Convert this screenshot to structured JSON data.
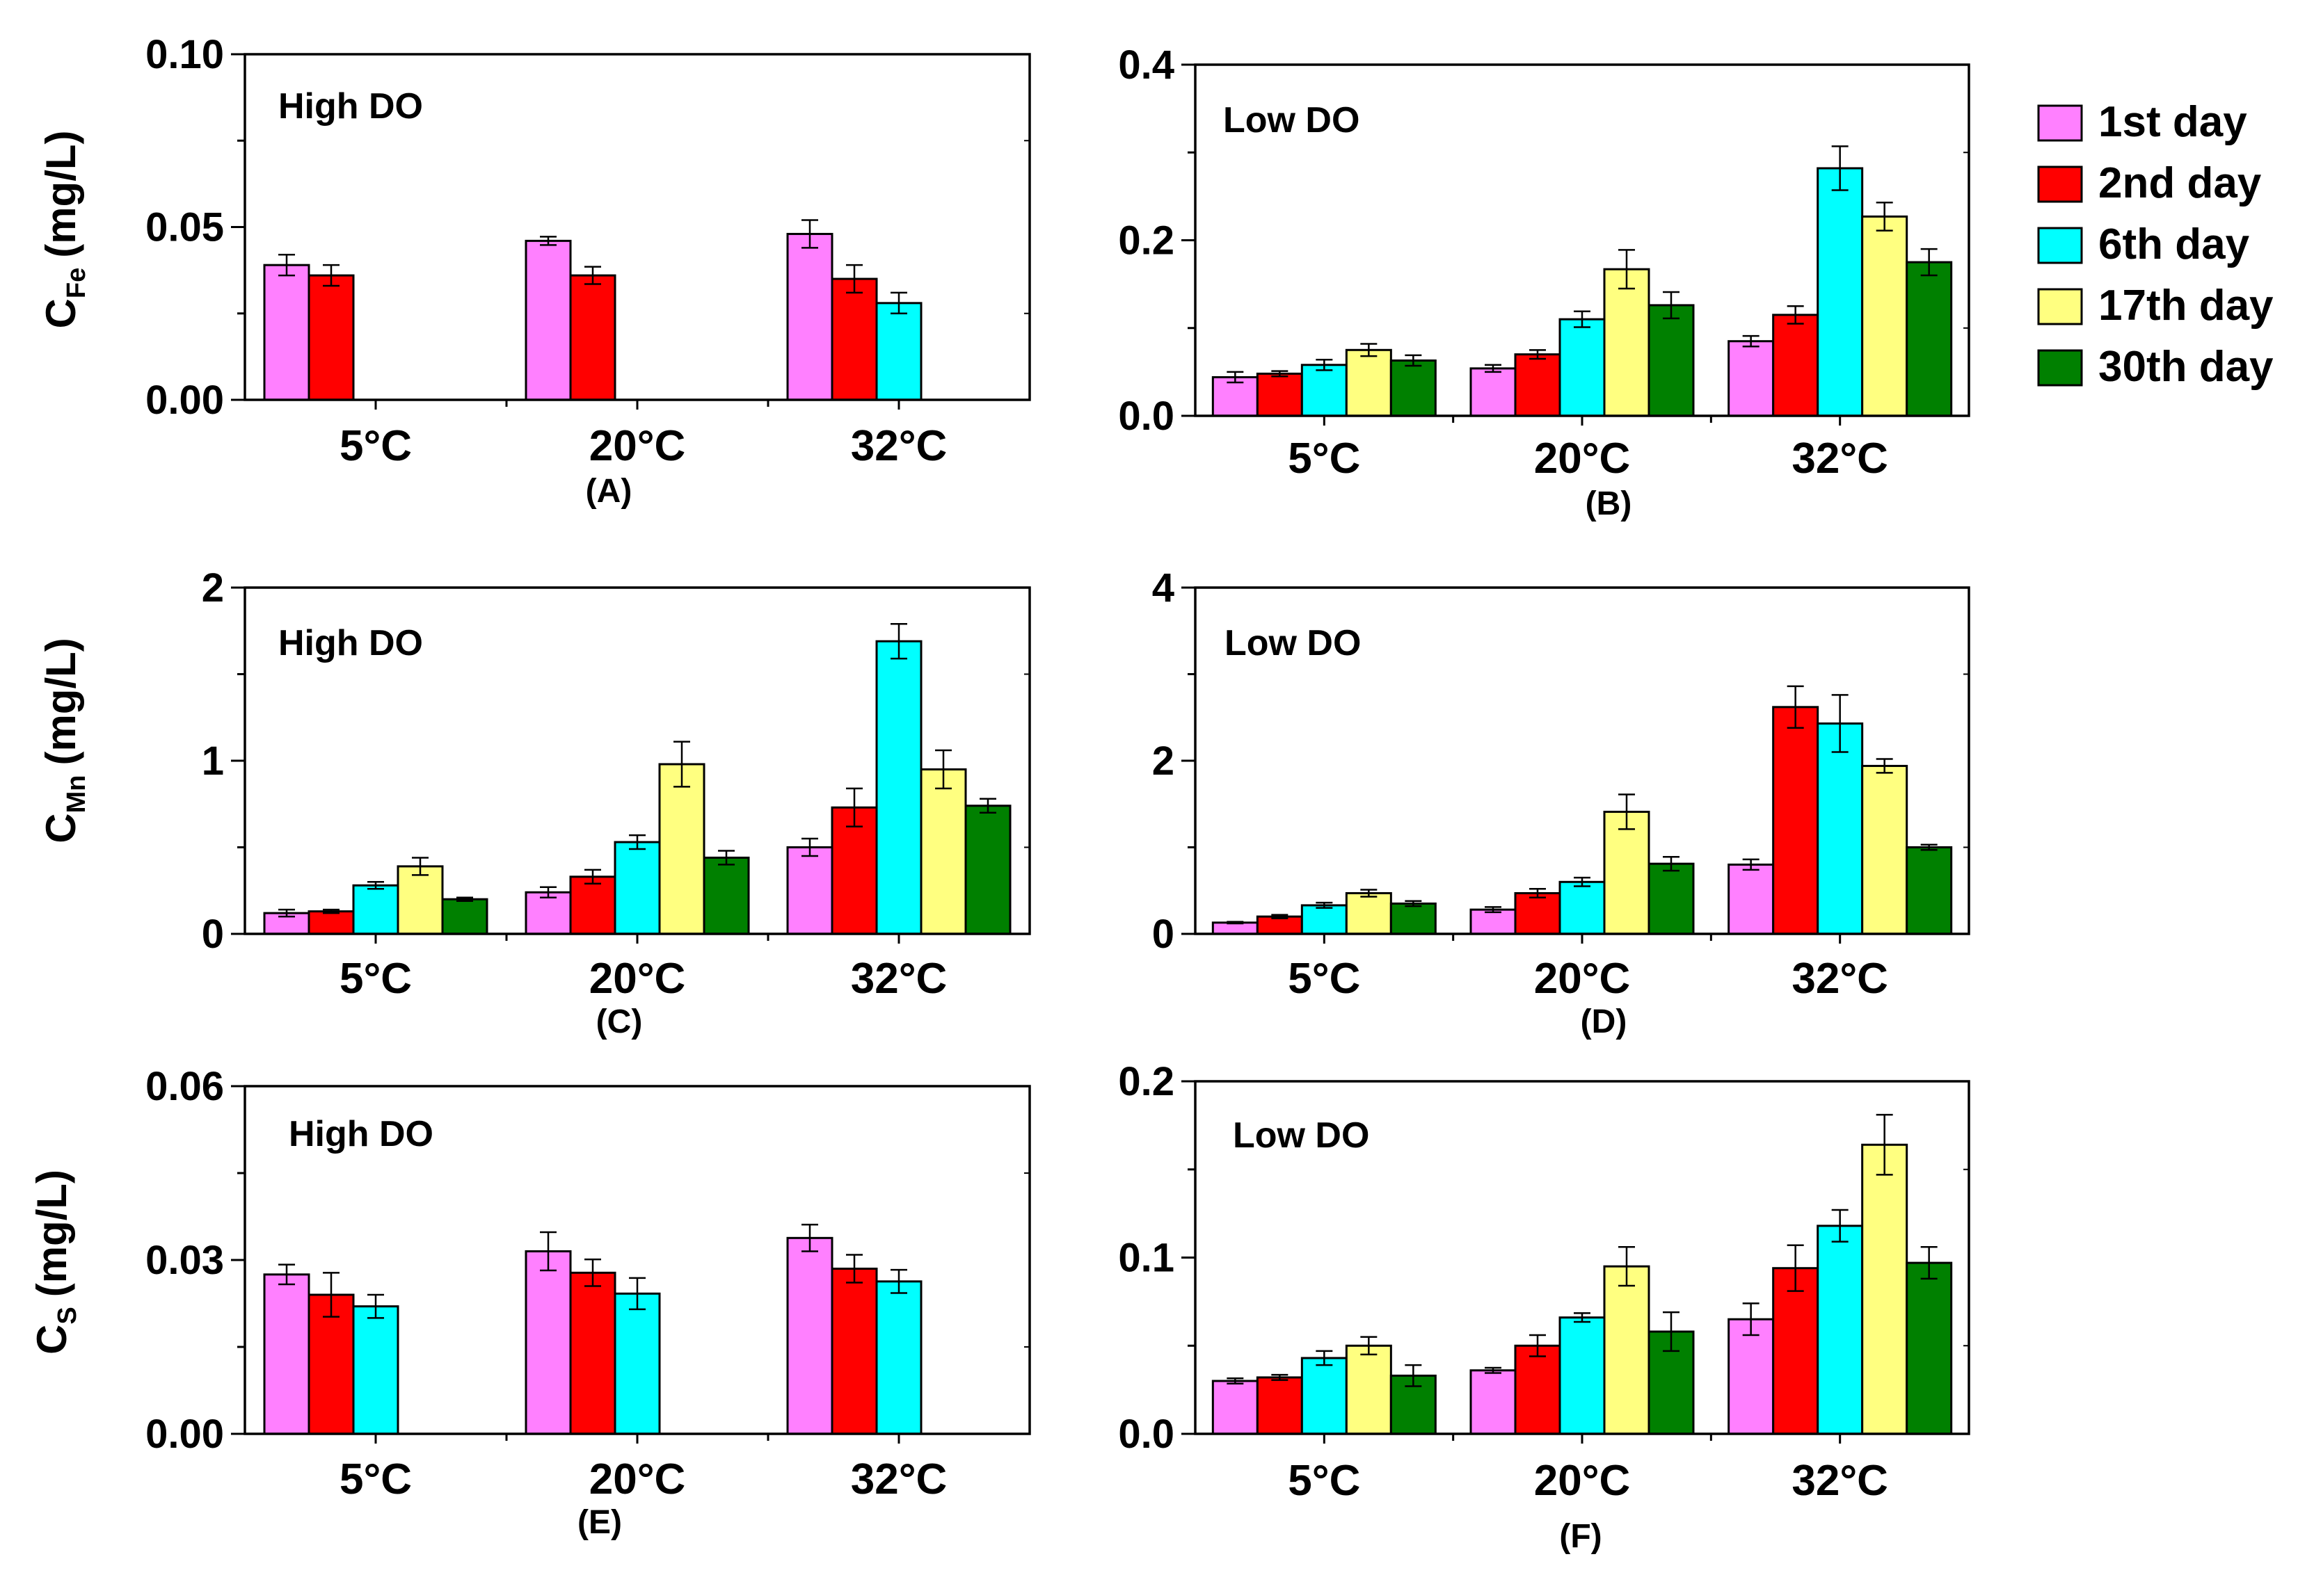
{
  "legend": {
    "items": [
      {
        "label": "1st day",
        "color": "#ff80ff"
      },
      {
        "label": "2nd day",
        "color": "#ff0000"
      },
      {
        "label": "6th day",
        "color": "#00ffff"
      },
      {
        "label": "17th day",
        "color": "#ffff80"
      },
      {
        "label": "30th day",
        "color": "#008000"
      }
    ]
  },
  "ylabels": {
    "fe": {
      "main": "C",
      "sub": "Fe",
      "unit": "(mg/L)"
    },
    "mn": {
      "main": "C",
      "sub": "Mn",
      "unit": "(mg/L)"
    },
    "s": {
      "main": "C",
      "sub": "S",
      "unit": "(mg/L)"
    }
  },
  "chart_data": [
    {
      "type": "bar",
      "panel": "(A)",
      "annotation": "High DO",
      "categories": [
        "5°C",
        "20°C",
        "32°C"
      ],
      "ylim": [
        0,
        0.1
      ],
      "yticks": [
        "0.00",
        "0.05",
        "0.10"
      ],
      "series": [
        {
          "name": "1st day",
          "values": [
            0.039,
            0.046,
            0.048
          ],
          "errors": [
            0.003,
            0.0012,
            0.004
          ]
        },
        {
          "name": "2nd day",
          "values": [
            0.036,
            0.036,
            0.035
          ],
          "errors": [
            0.003,
            0.0025,
            0.004
          ]
        },
        {
          "name": "6th day",
          "values": [
            null,
            null,
            0.028
          ],
          "errors": [
            null,
            null,
            0.003
          ]
        },
        {
          "name": "17th day",
          "values": [
            null,
            null,
            null
          ],
          "errors": [
            null,
            null,
            null
          ]
        },
        {
          "name": "30th day",
          "values": [
            null,
            null,
            null
          ],
          "errors": [
            null,
            null,
            null
          ]
        }
      ]
    },
    {
      "type": "bar",
      "panel": "(B)",
      "annotation": "Low DO",
      "categories": [
        "5°C",
        "20°C",
        "32°C"
      ],
      "ylim": [
        0,
        0.4
      ],
      "yticks": [
        "0.0",
        "0.2",
        "0.4"
      ],
      "series": [
        {
          "name": "1st day",
          "values": [
            0.044,
            0.054,
            0.085
          ],
          "errors": [
            0.006,
            0.004,
            0.006
          ]
        },
        {
          "name": "2nd day",
          "values": [
            0.048,
            0.07,
            0.115
          ],
          "errors": [
            0.003,
            0.005,
            0.01
          ]
        },
        {
          "name": "6th day",
          "values": [
            0.058,
            0.11,
            0.282
          ],
          "errors": [
            0.006,
            0.009,
            0.025
          ]
        },
        {
          "name": "17th day",
          "values": [
            0.075,
            0.167,
            0.227
          ],
          "errors": [
            0.007,
            0.022,
            0.016
          ]
        },
        {
          "name": "30th day",
          "values": [
            0.063,
            0.126,
            0.175
          ],
          "errors": [
            0.006,
            0.015,
            0.015
          ]
        }
      ]
    },
    {
      "type": "bar",
      "panel": "(C)",
      "annotation": "High DO",
      "categories": [
        "5°C",
        "20°C",
        "32°C"
      ],
      "ylim": [
        0,
        2
      ],
      "yticks": [
        "0",
        "1",
        "2"
      ],
      "series": [
        {
          "name": "1st day",
          "values": [
            0.12,
            0.24,
            0.5
          ],
          "errors": [
            0.02,
            0.03,
            0.05
          ]
        },
        {
          "name": "2nd day",
          "values": [
            0.13,
            0.33,
            0.73
          ],
          "errors": [
            0.01,
            0.04,
            0.11
          ]
        },
        {
          "name": "6th day",
          "values": [
            0.28,
            0.53,
            1.69
          ],
          "errors": [
            0.02,
            0.04,
            0.1
          ]
        },
        {
          "name": "17th day",
          "values": [
            0.39,
            0.98,
            0.95
          ],
          "errors": [
            0.05,
            0.13,
            0.11
          ]
        },
        {
          "name": "30th day",
          "values": [
            0.2,
            0.44,
            0.74
          ],
          "errors": [
            0.01,
            0.04,
            0.04
          ]
        }
      ]
    },
    {
      "type": "bar",
      "panel": "(D)",
      "annotation": "Low DO",
      "categories": [
        "5°C",
        "20°C",
        "32°C"
      ],
      "ylim": [
        0,
        4
      ],
      "yticks": [
        "0",
        "2",
        "4"
      ],
      "series": [
        {
          "name": "1st day",
          "values": [
            0.13,
            0.28,
            0.8
          ],
          "errors": [
            0.01,
            0.03,
            0.06
          ]
        },
        {
          "name": "2nd day",
          "values": [
            0.2,
            0.47,
            2.62
          ],
          "errors": [
            0.02,
            0.05,
            0.24
          ]
        },
        {
          "name": "6th day",
          "values": [
            0.33,
            0.6,
            2.43
          ],
          "errors": [
            0.03,
            0.05,
            0.33
          ]
        },
        {
          "name": "17th day",
          "values": [
            0.47,
            1.41,
            1.94
          ],
          "errors": [
            0.04,
            0.2,
            0.08
          ]
        },
        {
          "name": "30th day",
          "values": [
            0.35,
            0.81,
            1.0
          ],
          "errors": [
            0.03,
            0.08,
            0.03
          ]
        }
      ]
    },
    {
      "type": "bar",
      "panel": "(E)",
      "annotation": "High DO",
      "categories": [
        "5°C",
        "20°C",
        "32°C"
      ],
      "ylim": [
        0,
        0.06
      ],
      "yticks": [
        "0.00",
        "0.03",
        "0.06"
      ],
      "series": [
        {
          "name": "1st day",
          "values": [
            0.0275,
            0.0315,
            0.0338
          ],
          "errors": [
            0.0017,
            0.0033,
            0.0023
          ]
        },
        {
          "name": "2nd day",
          "values": [
            0.024,
            0.0278,
            0.0285
          ],
          "errors": [
            0.0038,
            0.0023,
            0.0024
          ]
        },
        {
          "name": "6th day",
          "values": [
            0.022,
            0.0242,
            0.0263
          ],
          "errors": [
            0.002,
            0.0027,
            0.002
          ]
        },
        {
          "name": "17th day",
          "values": [
            null,
            null,
            null
          ],
          "errors": [
            null,
            null,
            null
          ]
        },
        {
          "name": "30th day",
          "values": [
            null,
            null,
            null
          ],
          "errors": [
            null,
            null,
            null
          ]
        }
      ]
    },
    {
      "type": "bar",
      "panel": "(F)",
      "annotation": "Low DO",
      "categories": [
        "5°C",
        "20°C",
        "32°C"
      ],
      "ylim": [
        0,
        0.2
      ],
      "yticks": [
        "0.0",
        "0.1",
        "0.2"
      ],
      "series": [
        {
          "name": "1st day",
          "values": [
            0.03,
            0.036,
            0.065
          ],
          "errors": [
            0.0015,
            0.0015,
            0.009
          ]
        },
        {
          "name": "2nd day",
          "values": [
            0.032,
            0.05,
            0.094
          ],
          "errors": [
            0.0015,
            0.006,
            0.013
          ]
        },
        {
          "name": "6th day",
          "values": [
            0.043,
            0.066,
            0.118
          ],
          "errors": [
            0.004,
            0.0025,
            0.009
          ]
        },
        {
          "name": "17th day",
          "values": [
            0.05,
            0.095,
            0.164
          ],
          "errors": [
            0.005,
            0.011,
            0.017
          ]
        },
        {
          "name": "30th day",
          "values": [
            0.033,
            0.058,
            0.097
          ],
          "errors": [
            0.006,
            0.011,
            0.009
          ]
        }
      ]
    }
  ]
}
